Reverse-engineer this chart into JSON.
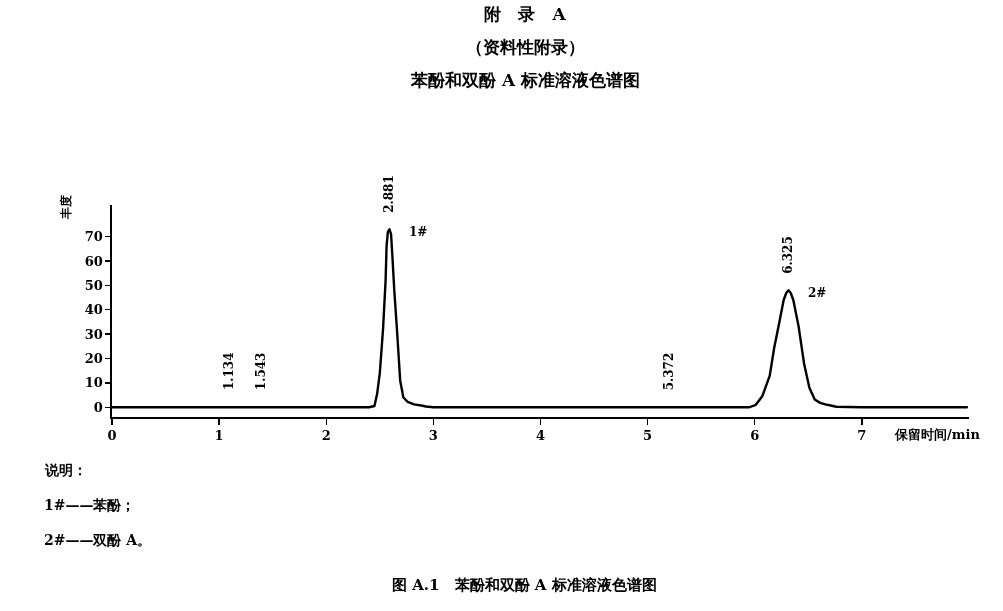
{
  "chart_data": {
    "type": "line",
    "title": "附　录　A",
    "subtitle": "（资料性附录）",
    "xlabel": "保留时间/min",
    "ylabel": "丰度",
    "series": [
      {
        "color": "#000000",
        "x": [
          0,
          1,
          2,
          2.4,
          2.45,
          2.475,
          2.5,
          2.53,
          2.554,
          2.563,
          2.575,
          2.59,
          2.605,
          2.62,
          2.635,
          2.66,
          2.69,
          2.72,
          2.76,
          2.82,
          2.9,
          2.93,
          3,
          4,
          5,
          5.95,
          6.01,
          6.07,
          6.14,
          6.18,
          6.23,
          6.27,
          6.295,
          6.315,
          6.335,
          6.36,
          6.41,
          6.46,
          6.51,
          6.56,
          6.61,
          6.66,
          6.72,
          6.76,
          7,
          7.98
        ],
        "values": [
          0,
          0,
          0,
          0,
          0.5,
          5.5,
          14,
          32,
          52,
          66,
          72,
          73,
          71,
          60,
          48,
          32,
          11,
          4,
          2.2,
          1.2,
          0.6,
          0.3,
          0,
          0,
          0,
          0,
          1,
          4.5,
          13,
          24,
          35,
          44,
          47,
          48,
          47,
          44,
          33,
          18,
          8,
          3.2,
          1.8,
          1.2,
          0.6,
          0.2,
          0,
          0
        ]
      }
    ],
    "xlim": [
      0,
      8
    ],
    "xticks": [
      0,
      1,
      2,
      3,
      4,
      5,
      6,
      7
    ],
    "ylim": [
      -4,
      83
    ],
    "yticks": [
      0,
      10,
      20,
      30,
      40,
      50,
      60,
      70
    ],
    "grid": false,
    "annotations": [
      {
        "text": "1.134",
        "x": 1.09,
        "y": 0
      },
      {
        "text": "1.543",
        "x": 1.39,
        "y": 0
      },
      {
        "text": "2.881",
        "x": 2.59,
        "y": 73
      },
      {
        "text": "1#",
        "x": 2.59,
        "y": 73
      },
      {
        "text": "5.372",
        "x": 5.2,
        "y": 0
      },
      {
        "text": "6.325",
        "x": 6.315,
        "y": 48
      },
      {
        "text": "2#",
        "x": 6.315,
        "y": 48
      },
      "苯酚和双酚 A 标准溶液色谱图",
      "说明：",
      "1#——苯酚；",
      "2#——双酚 A。",
      "图 A.1　苯酚和双酚 A 标准溶液色谱图"
    ]
  }
}
